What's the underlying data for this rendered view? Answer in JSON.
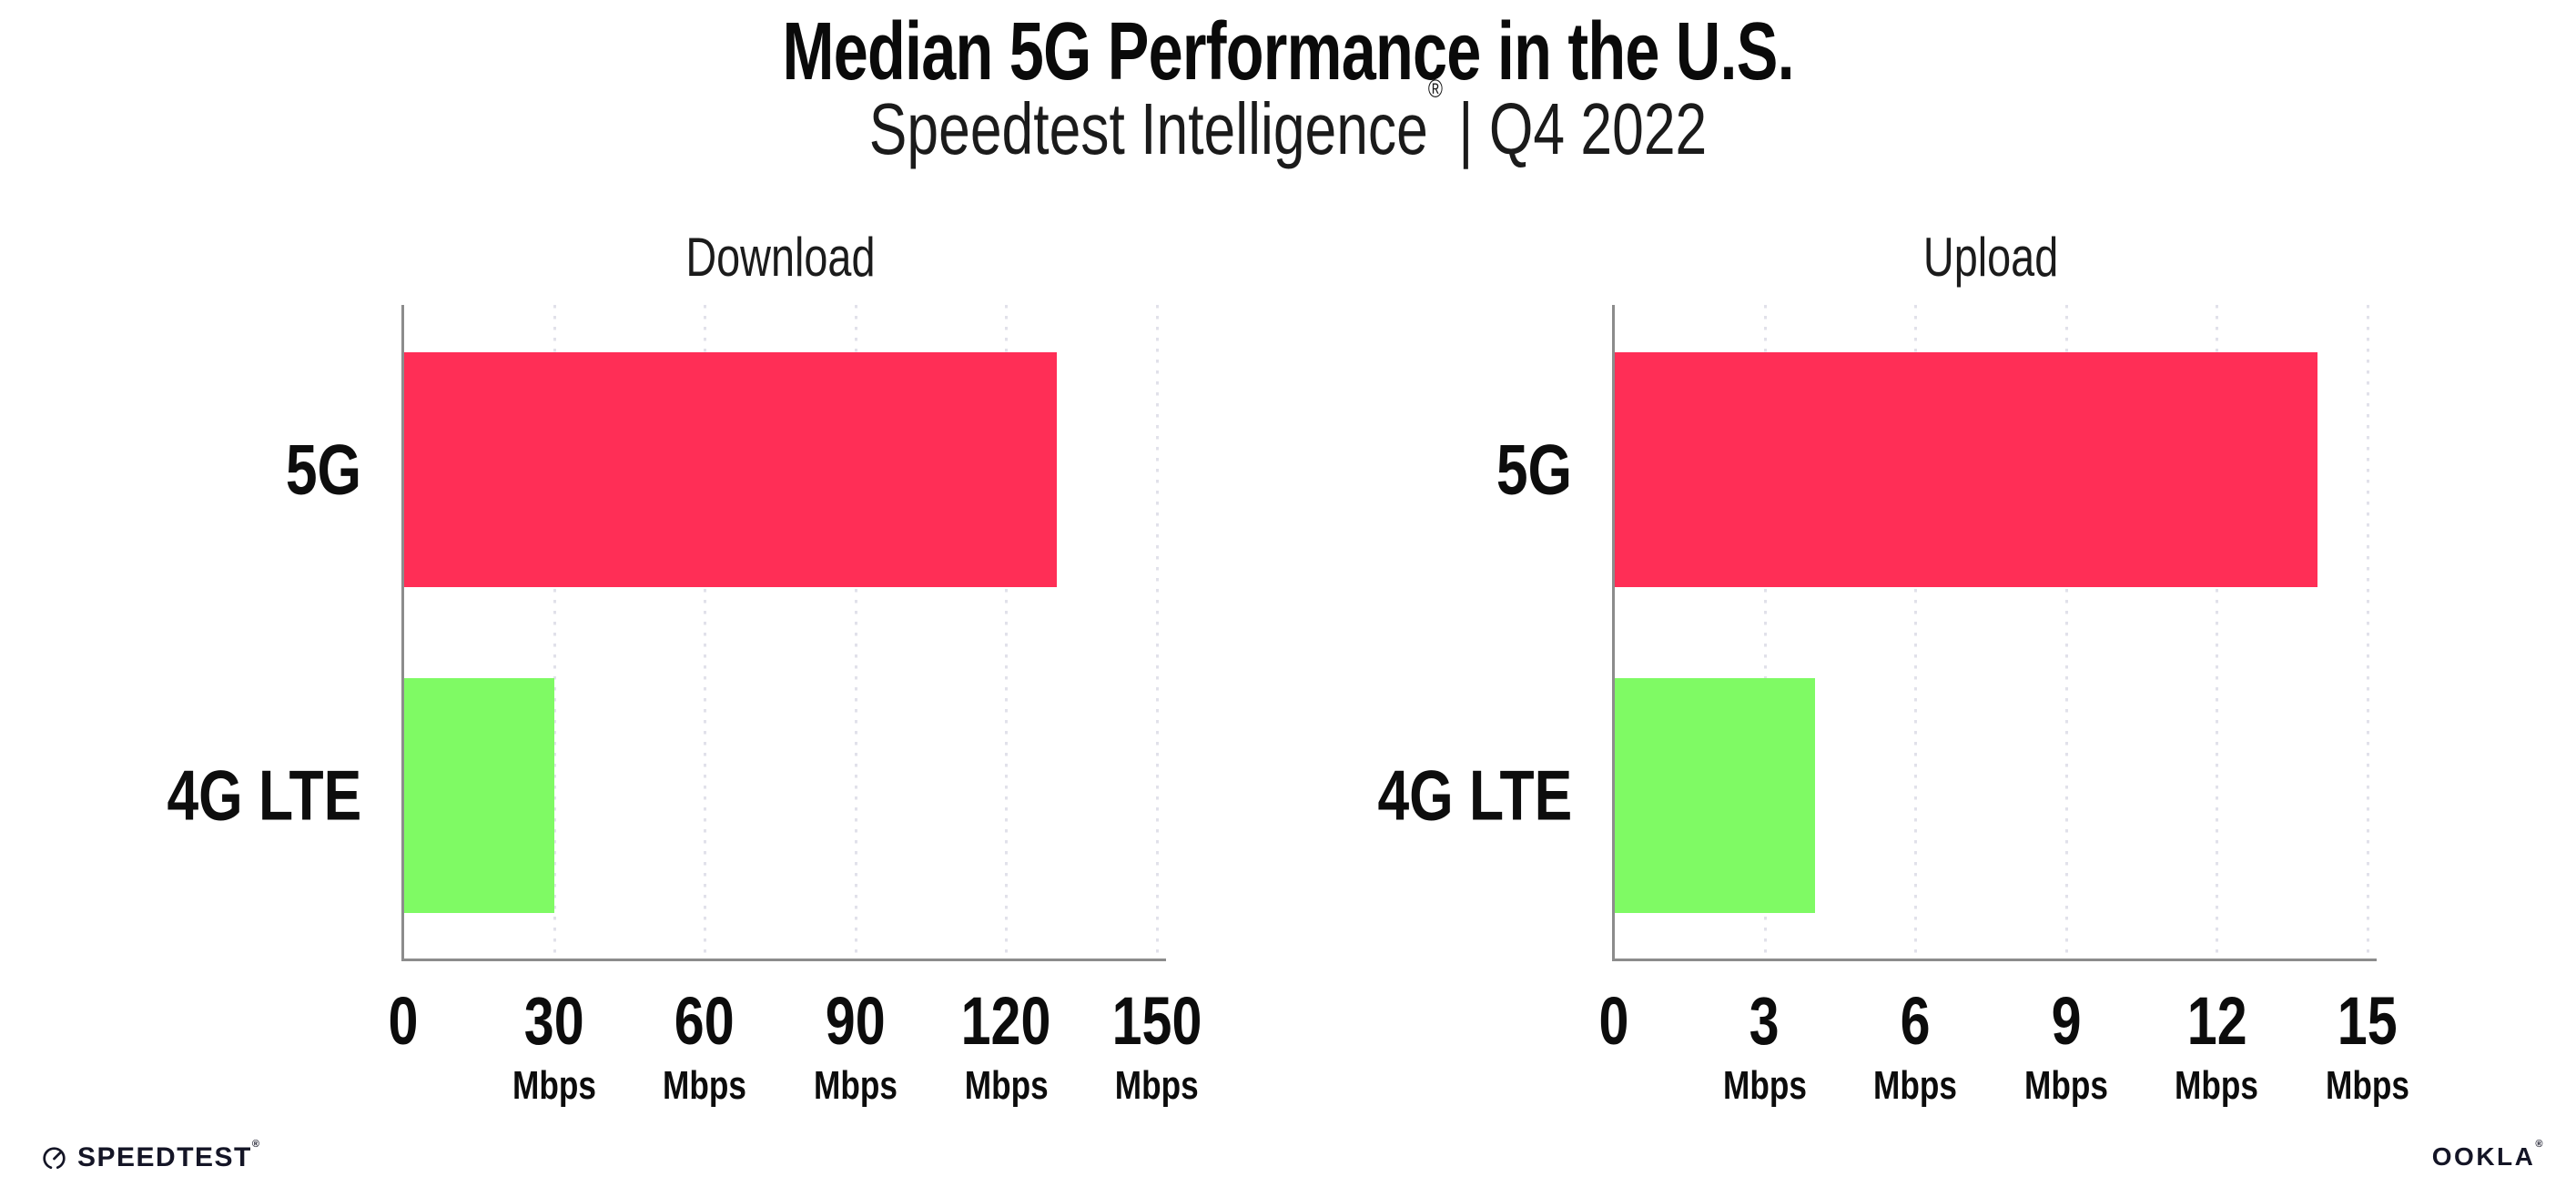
{
  "header": {
    "title": "Median 5G Performance in the U.S.",
    "subtitle_brand": "Speedtest Intelligence",
    "subtitle_reg": "®",
    "subtitle_rest": "| Q4 2022"
  },
  "chart_data": [
    {
      "type": "bar",
      "orientation": "horizontal",
      "title": "Download",
      "categories": [
        "5G",
        "4G LTE"
      ],
      "values": [
        130,
        30
      ],
      "unit": "Mbps",
      "xlim": [
        0,
        150
      ],
      "xticks": [
        0,
        30,
        60,
        90,
        120,
        150
      ],
      "bar_colors": [
        "#ff2e56",
        "#7ffa64"
      ],
      "grid": "vertical-dotted",
      "grid_color": "#e1e1ea",
      "axis_color": "#8c8c8c"
    },
    {
      "type": "bar",
      "orientation": "horizontal",
      "title": "Upload",
      "categories": [
        "5G",
        "4G LTE"
      ],
      "values": [
        14,
        4
      ],
      "unit": "Mbps",
      "xlim": [
        0,
        15
      ],
      "xticks": [
        0,
        3,
        6,
        9,
        12,
        15
      ],
      "bar_colors": [
        "#ff2e56",
        "#7ffa64"
      ],
      "grid": "vertical-dotted",
      "grid_color": "#e1e1ea",
      "axis_color": "#8c8c8c"
    }
  ],
  "footer": {
    "speedtest_label": "SPEEDTEST",
    "speedtest_mark": "®",
    "ookla_label": "OOKLA",
    "ookla_mark": "®",
    "brand_color": "#141526"
  }
}
